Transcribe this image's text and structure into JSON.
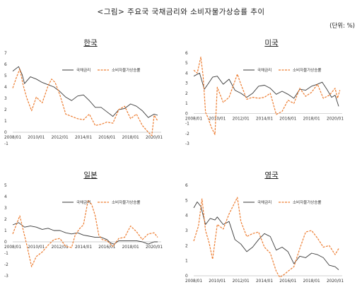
{
  "figure": {
    "title": "<그림> 주요국 국채금리와 소비자물가상승률 추이",
    "unit": "(단위: %)"
  },
  "colors": {
    "bond": "#3a3a3a",
    "cpi": "#ed7d31"
  },
  "chart_data": [
    {
      "type": "line",
      "title": "한국",
      "ylim": [
        -1,
        7
      ],
      "yticks": [
        -1,
        0,
        1,
        2,
        3,
        4,
        5,
        6,
        7
      ],
      "xticks": [
        "2008/01",
        "2010/01",
        "2012/01",
        "2014/01",
        "2016/01",
        "2018/01",
        "2020/01"
      ],
      "legend": [
        "국채금리",
        "소비자물가상승률"
      ],
      "series": [
        {
          "name": "국채금리",
          "x": [
            2008.0,
            2008.5,
            2008.8,
            2009.0,
            2009.5,
            2010.0,
            2010.5,
            2011.0,
            2011.5,
            2012.0,
            2012.5,
            2013.0,
            2013.5,
            2014.0,
            2014.5,
            2015.0,
            2015.5,
            2016.0,
            2016.5,
            2017.0,
            2017.5,
            2018.0,
            2018.5,
            2019.0,
            2019.5,
            2020.0,
            2020.3
          ],
          "values": [
            5.4,
            5.8,
            5.1,
            4.3,
            4.9,
            4.7,
            4.4,
            4.2,
            4.0,
            3.6,
            3.1,
            2.8,
            3.2,
            3.3,
            2.8,
            2.2,
            2.2,
            1.8,
            1.4,
            2.0,
            2.1,
            2.5,
            2.3,
            1.9,
            1.3,
            1.6,
            1.5
          ]
        },
        {
          "name": "소비자물가상승률",
          "x": [
            2008.0,
            2008.3,
            2008.6,
            2008.9,
            2009.2,
            2009.6,
            2010.0,
            2010.5,
            2011.0,
            2011.3,
            2011.6,
            2012.0,
            2012.5,
            2013.0,
            2013.5,
            2014.0,
            2014.5,
            2015.0,
            2015.5,
            2016.0,
            2016.5,
            2017.0,
            2017.5,
            2018.0,
            2018.5,
            2019.0,
            2019.5,
            2019.8,
            2020.0,
            2020.3
          ],
          "values": [
            3.9,
            4.8,
            5.6,
            4.1,
            3.0,
            1.9,
            3.1,
            2.6,
            4.1,
            4.7,
            4.4,
            3.3,
            1.6,
            1.4,
            1.2,
            1.1,
            1.6,
            0.6,
            0.7,
            0.9,
            0.8,
            2.0,
            2.3,
            1.2,
            1.6,
            0.6,
            0.0,
            -0.3,
            1.5,
            1.0
          ]
        }
      ]
    },
    {
      "type": "line",
      "title": "미국",
      "ylim": [
        -3,
        6
      ],
      "yticks": [
        -3,
        -2,
        -1,
        0,
        1,
        2,
        3,
        4,
        5,
        6
      ],
      "xticks": [
        "2008/01",
        "2010/01",
        "2012/01",
        "2014/01",
        "2016/01",
        "2018/01",
        "2020/01"
      ],
      "legend": [
        "국채금리",
        "소비자물가상승률"
      ],
      "series": [
        {
          "name": "국채금리",
          "x": [
            2008.0,
            2008.5,
            2008.9,
            2009.2,
            2009.6,
            2010.0,
            2010.5,
            2011.0,
            2011.5,
            2012.0,
            2012.5,
            2013.0,
            2013.5,
            2014.0,
            2014.5,
            2015.0,
            2015.5,
            2016.0,
            2016.5,
            2017.0,
            2017.5,
            2018.0,
            2018.5,
            2018.9,
            2019.3,
            2019.7,
            2020.0,
            2020.3
          ],
          "values": [
            3.7,
            4.0,
            2.4,
            2.9,
            3.6,
            3.7,
            2.9,
            3.4,
            2.3,
            2.0,
            1.6,
            2.0,
            2.7,
            2.8,
            2.5,
            1.9,
            2.2,
            1.9,
            1.5,
            2.4,
            2.3,
            2.7,
            2.9,
            3.1,
            2.4,
            1.6,
            1.8,
            0.7
          ]
        },
        {
          "name": "소비자물가상승률",
          "x": [
            2008.0,
            2008.3,
            2008.6,
            2008.8,
            2009.0,
            2009.2,
            2009.5,
            2009.8,
            2010.0,
            2010.5,
            2011.0,
            2011.7,
            2012.0,
            2012.5,
            2013.0,
            2013.5,
            2014.0,
            2014.5,
            2015.0,
            2015.5,
            2016.0,
            2016.5,
            2017.0,
            2017.5,
            2018.0,
            2018.5,
            2019.0,
            2019.5,
            2020.0,
            2020.2,
            2020.4
          ],
          "values": [
            4.3,
            4.0,
            5.6,
            3.7,
            0.1,
            -0.4,
            -1.4,
            -2.1,
            2.6,
            1.1,
            1.6,
            3.9,
            2.9,
            1.4,
            1.6,
            1.5,
            1.6,
            2.0,
            -0.1,
            0.2,
            1.3,
            1.0,
            2.5,
            1.7,
            2.1,
            2.9,
            1.5,
            1.8,
            2.5,
            1.5,
            2.3
          ]
        }
      ]
    },
    {
      "type": "line",
      "title": "일본",
      "ylim": [
        -3,
        5
      ],
      "yticks": [
        -3,
        -2,
        -1,
        0,
        1,
        2,
        3,
        4,
        5
      ],
      "xticks": [
        "2008/01",
        "2010/01",
        "2012/01",
        "2014/01",
        "2016/01",
        "2018/01",
        "2020/01"
      ],
      "legend": [
        "국채금리",
        "소비자물가상승률"
      ],
      "series": [
        {
          "name": "국채금리",
          "x": [
            2008.0,
            2008.5,
            2009.0,
            2009.5,
            2010.0,
            2010.5,
            2011.0,
            2011.5,
            2012.0,
            2012.5,
            2013.0,
            2013.5,
            2014.0,
            2014.5,
            2015.0,
            2015.5,
            2016.0,
            2016.3,
            2016.6,
            2017.0,
            2017.5,
            2018.0,
            2018.5,
            2019.0,
            2019.5,
            2020.0,
            2020.3
          ],
          "values": [
            1.5,
            1.7,
            1.3,
            1.4,
            1.3,
            1.1,
            1.2,
            1.0,
            1.0,
            0.8,
            0.7,
            0.8,
            0.6,
            0.5,
            0.4,
            0.4,
            0.2,
            -0.1,
            -0.2,
            0.1,
            0.1,
            0.1,
            0.1,
            0.0,
            -0.2,
            0.0,
            0.0
          ]
        },
        {
          "name": "소비자물가상승률",
          "x": [
            2008.0,
            2008.3,
            2008.6,
            2008.9,
            2009.2,
            2009.6,
            2010.0,
            2010.5,
            2011.0,
            2011.5,
            2012.0,
            2012.5,
            2013.0,
            2013.3,
            2013.7,
            2014.0,
            2014.4,
            2014.7,
            2015.0,
            2015.3,
            2015.6,
            2016.0,
            2016.5,
            2017.0,
            2017.5,
            2018.0,
            2018.5,
            2019.0,
            2019.5,
            2020.0,
            2020.3
          ],
          "values": [
            0.7,
            1.5,
            2.3,
            1.0,
            -0.3,
            -2.2,
            -1.3,
            -0.9,
            -0.3,
            0.2,
            0.3,
            -0.4,
            -0.5,
            0.6,
            1.2,
            1.5,
            3.7,
            3.3,
            2.3,
            0.6,
            0.2,
            0.1,
            -0.4,
            0.3,
            0.4,
            1.4,
            0.9,
            0.2,
            0.7,
            0.8,
            0.4
          ]
        }
      ]
    },
    {
      "type": "line",
      "title": "영국",
      "ylim": [
        0,
        6
      ],
      "yticks": [
        0,
        1,
        2,
        3,
        4,
        5,
        6
      ],
      "xticks": [
        "2008/01",
        "2010/01",
        "2012/01",
        "2014/01",
        "2016/01",
        "2018/01",
        "2020/01"
      ],
      "legend": [
        "국채금리",
        "소비자물가상승률"
      ],
      "series": [
        {
          "name": "국채금리",
          "x": [
            2008.0,
            2008.3,
            2008.6,
            2009.0,
            2009.4,
            2009.8,
            2010.0,
            2010.5,
            2011.0,
            2011.5,
            2012.0,
            2012.5,
            2013.0,
            2013.5,
            2014.0,
            2014.5,
            2015.0,
            2015.5,
            2016.0,
            2016.5,
            2017.0,
            2017.5,
            2018.0,
            2018.5,
            2019.0,
            2019.5,
            2020.0,
            2020.3
          ],
          "values": [
            4.5,
            4.9,
            4.6,
            3.4,
            3.8,
            3.7,
            3.9,
            3.4,
            3.6,
            2.4,
            2.1,
            1.6,
            1.9,
            2.4,
            2.8,
            2.6,
            1.7,
            1.9,
            1.6,
            0.8,
            1.3,
            1.2,
            1.5,
            1.4,
            1.2,
            0.7,
            0.6,
            0.4
          ]
        },
        {
          "name": "소비자물가상승률",
          "x": [
            2008.0,
            2008.4,
            2008.7,
            2009.0,
            2009.3,
            2009.6,
            2010.0,
            2010.5,
            2011.0,
            2011.7,
            2012.0,
            2012.5,
            2013.0,
            2013.5,
            2014.0,
            2014.5,
            2015.0,
            2015.3,
            2015.7,
            2016.0,
            2016.5,
            2017.0,
            2017.5,
            2018.0,
            2018.5,
            2019.0,
            2019.5,
            2020.0,
            2020.3
          ],
          "values": [
            2.3,
            3.3,
            5.1,
            3.0,
            2.2,
            1.1,
            3.4,
            3.1,
            4.1,
            5.2,
            3.6,
            2.6,
            2.8,
            2.9,
            1.9,
            1.5,
            0.3,
            -0.1,
            0.1,
            0.3,
            0.6,
            1.8,
            2.9,
            3.0,
            2.5,
            1.9,
            2.0,
            1.4,
            1.8
          ]
        }
      ]
    }
  ]
}
